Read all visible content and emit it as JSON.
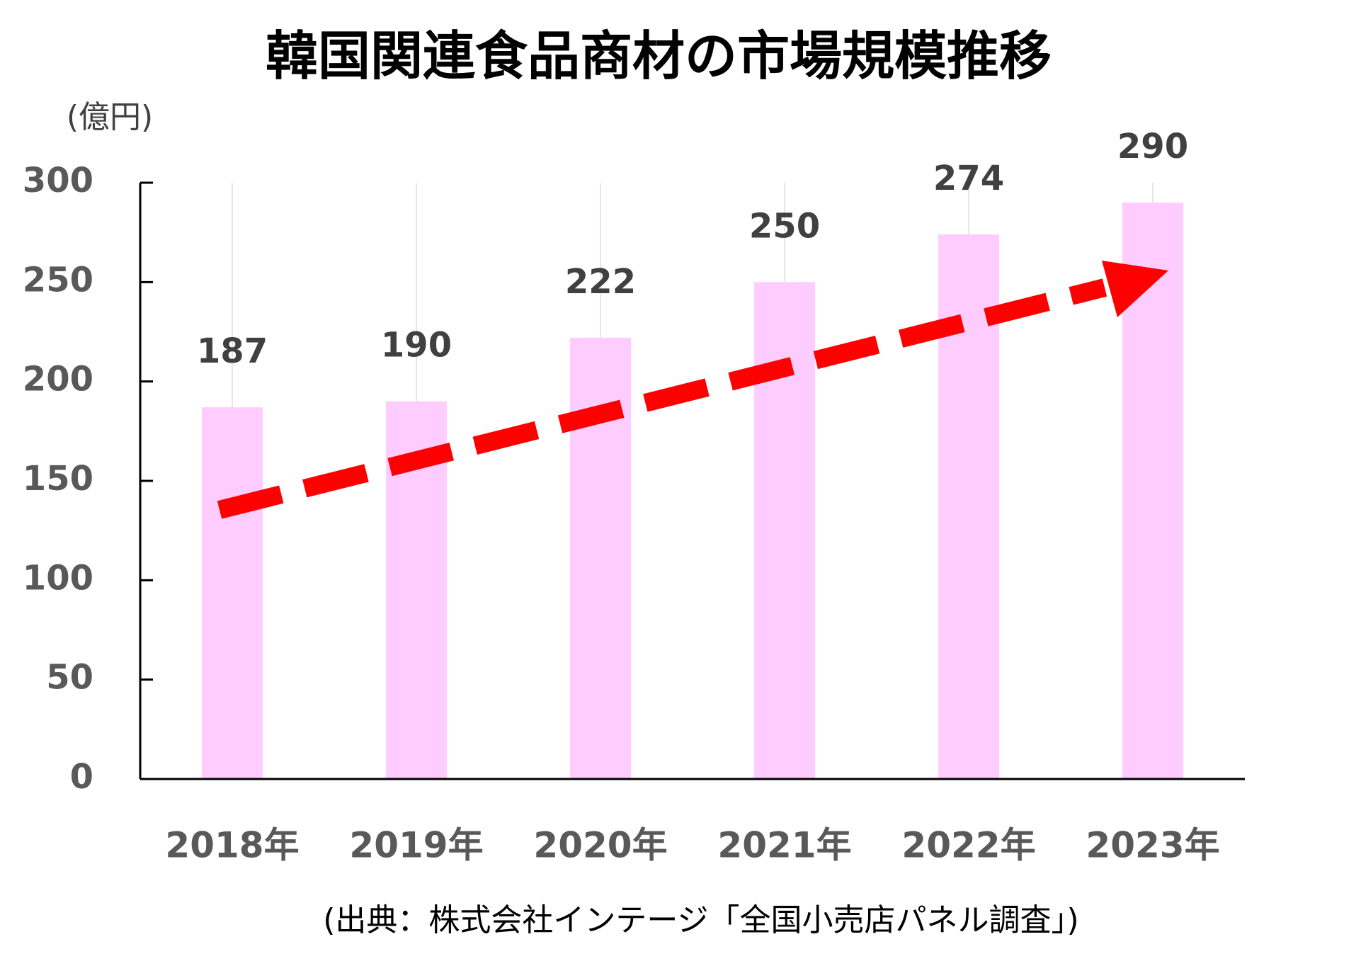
{
  "chart_data": {
    "type": "bar",
    "title": "韓国関連食品商材の市場規模推移",
    "y_label": "(億円)",
    "source": "(出典：株式会社インテージ「全国小売店パネル調査」)",
    "categories": [
      "2018年",
      "2019年",
      "2020年",
      "2021年",
      "2022年",
      "2023年"
    ],
    "values": [
      187,
      190,
      222,
      250,
      274,
      290
    ],
    "color": "#ffccff",
    "ylim": [
      0,
      300
    ],
    "yticks": [
      0,
      50,
      100,
      150,
      200,
      250,
      300
    ]
  }
}
